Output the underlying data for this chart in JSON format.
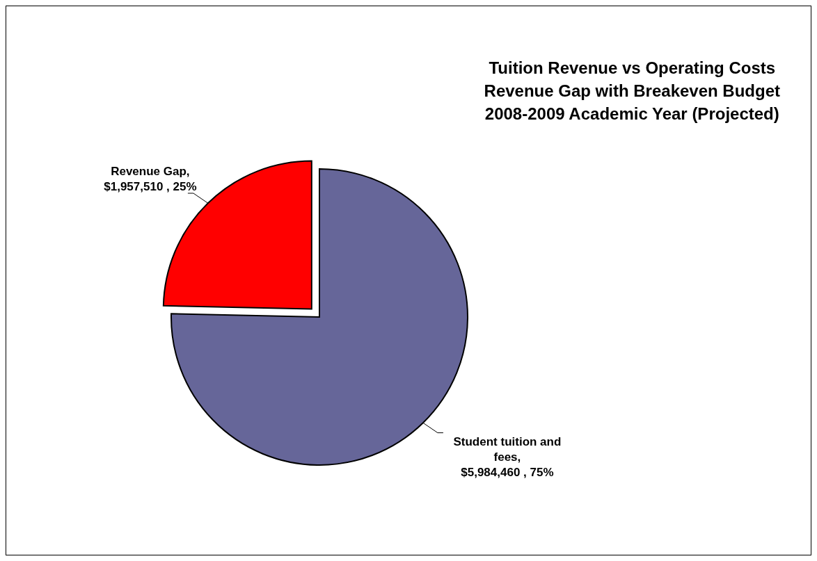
{
  "chart_data": {
    "type": "pie",
    "title": "Tuition Revenue vs Operating Costs\nRevenue Gap with Breakeven Budget\n2008-2009 Academic Year (Projected)",
    "categories": [
      "Student tuition and fees",
      "Revenue Gap"
    ],
    "values": [
      5984460,
      1957510
    ],
    "value_labels": [
      ", $5,984,460 , 75%",
      ", $1,957,510 , 25%"
    ],
    "colors": [
      "#666699",
      "#ff0000"
    ]
  }
}
